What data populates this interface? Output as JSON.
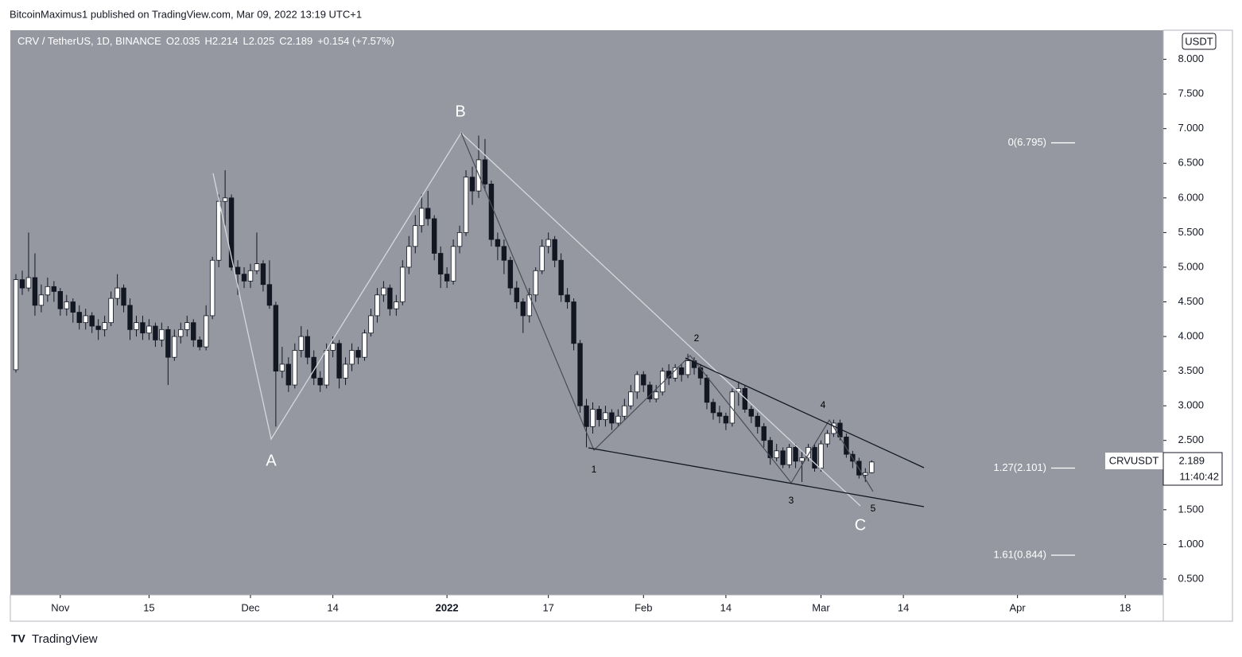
{
  "header": {
    "publisher": "BitcoinMaximus1 published on TradingView.com, Mar 09, 2022 13:19 UTC+1",
    "brand": "TradingView"
  },
  "chart_data": {
    "type": "candlestick",
    "title": "CRV / TetherUS, 1D, BINANCE",
    "ohlc_labels": [
      "O",
      "H",
      "L",
      "C"
    ],
    "change_label": "+0.154 (+7.57%)",
    "currency": "USDT",
    "symbol": "CRVUSDT",
    "countdown": "11:40:42",
    "up_color": "#ffffff",
    "down_color": "#131722",
    "background": "#9598a1",
    "ylim": [
      0.27,
      8.42
    ],
    "yticks": [
      {
        "value": 0.5,
        "label": "0.500"
      },
      {
        "value": 1,
        "label": "1.000"
      },
      {
        "value": 1.5,
        "label": "1.500"
      },
      {
        "value": 2,
        "label": "2.000"
      },
      {
        "value": 2.5,
        "label": "2.500"
      },
      {
        "value": 3,
        "label": "3.000"
      },
      {
        "value": 3.5,
        "label": "3.500"
      },
      {
        "value": 4,
        "label": "4.000"
      },
      {
        "value": 4.5,
        "label": "4.500"
      },
      {
        "value": 5,
        "label": "5.000"
      },
      {
        "value": 5.5,
        "label": "5.500"
      },
      {
        "value": 6,
        "label": "6.000"
      },
      {
        "value": 6.5,
        "label": "6.500"
      },
      {
        "value": 7,
        "label": "7.000"
      },
      {
        "value": 7.5,
        "label": "7.500"
      },
      {
        "value": 8,
        "label": "8.000"
      }
    ],
    "xlim": [
      -0.88,
      181
    ],
    "xticks": [
      {
        "value": 7,
        "label": "Nov"
      },
      {
        "value": 21,
        "label": "15"
      },
      {
        "value": 37,
        "label": "Dec"
      },
      {
        "value": 50,
        "label": "14"
      },
      {
        "value": 68,
        "label": "2022"
      },
      {
        "value": 84,
        "label": "17"
      },
      {
        "value": 99,
        "label": "Feb"
      },
      {
        "value": 112,
        "label": "14"
      },
      {
        "value": 127,
        "label": "Mar"
      },
      {
        "value": 140,
        "label": "14"
      },
      {
        "value": 158,
        "label": "Apr"
      },
      {
        "value": 175,
        "label": "18"
      }
    ],
    "wave_labels": [
      "A",
      "B",
      "C",
      "1",
      "2",
      "3",
      "4",
      "5"
    ],
    "fib_levels": [
      {
        "label": "0(6.795)",
        "value": 6.795
      },
      {
        "label": "1.27(2.101)",
        "value": 2.101
      },
      {
        "label": "1.61(0.844)",
        "value": 0.844
      }
    ],
    "ohlc": [
      [
        3.52,
        4.9,
        3.48,
        4.82
      ],
      [
        4.82,
        4.95,
        4.6,
        4.7
      ],
      [
        4.7,
        5.5,
        4.65,
        4.85
      ],
      [
        4.85,
        5.2,
        4.3,
        4.45
      ],
      [
        4.45,
        4.75,
        4.35,
        4.6
      ],
      [
        4.6,
        4.85,
        4.5,
        4.72
      ],
      [
        4.72,
        4.8,
        4.5,
        4.65
      ],
      [
        4.65,
        4.7,
        4.3,
        4.4
      ],
      [
        4.4,
        4.6,
        4.3,
        4.5
      ],
      [
        4.5,
        4.55,
        4.2,
        4.35
      ],
      [
        4.35,
        4.45,
        4.1,
        4.2
      ],
      [
        4.2,
        4.4,
        4.1,
        4.3
      ],
      [
        4.3,
        4.35,
        4.05,
        4.15
      ],
      [
        4.15,
        4.25,
        3.95,
        4.1
      ],
      [
        4.1,
        4.3,
        4.0,
        4.2
      ],
      [
        4.2,
        4.65,
        4.15,
        4.55
      ],
      [
        4.55,
        4.9,
        4.45,
        4.7
      ],
      [
        4.7,
        4.75,
        4.35,
        4.45
      ],
      [
        4.45,
        4.55,
        3.95,
        4.1
      ],
      [
        4.1,
        4.3,
        4.0,
        4.2
      ],
      [
        4.2,
        4.3,
        3.95,
        4.05
      ],
      [
        4.05,
        4.25,
        3.95,
        4.15
      ],
      [
        4.15,
        4.2,
        3.85,
        3.95
      ],
      [
        3.95,
        4.2,
        3.85,
        4.1
      ],
      [
        4.1,
        4.15,
        3.3,
        3.7
      ],
      [
        3.7,
        4.1,
        3.65,
        4.0
      ],
      [
        4.0,
        4.2,
        3.9,
        4.1
      ],
      [
        4.1,
        4.3,
        4.0,
        4.2
      ],
      [
        4.2,
        4.25,
        3.85,
        3.95
      ],
      [
        3.95,
        4.0,
        3.8,
        3.85
      ],
      [
        3.85,
        4.45,
        3.8,
        4.3
      ],
      [
        4.3,
        5.15,
        4.25,
        5.1
      ],
      [
        5.1,
        6.05,
        5.0,
        5.95
      ],
      [
        5.95,
        6.4,
        5.6,
        6.0
      ],
      [
        6.0,
        6.05,
        4.95,
        5.0
      ],
      [
        5.0,
        5.1,
        4.6,
        4.9
      ],
      [
        4.9,
        5.0,
        4.7,
        4.8
      ],
      [
        4.8,
        5.05,
        4.7,
        4.95
      ],
      [
        4.95,
        5.5,
        4.9,
        5.05
      ],
      [
        5.05,
        5.1,
        4.65,
        4.75
      ],
      [
        4.75,
        5.1,
        4.4,
        4.45
      ],
      [
        4.45,
        4.5,
        2.7,
        3.5
      ],
      [
        3.5,
        3.85,
        3.4,
        3.6
      ],
      [
        3.6,
        3.7,
        3.2,
        3.3
      ],
      [
        3.3,
        3.9,
        3.25,
        3.8
      ],
      [
        3.8,
        4.15,
        3.7,
        4.0
      ],
      [
        4.0,
        4.1,
        3.6,
        3.7
      ],
      [
        3.7,
        3.8,
        3.3,
        3.4
      ],
      [
        3.4,
        3.5,
        3.2,
        3.3
      ],
      [
        3.3,
        3.9,
        3.25,
        3.8
      ],
      [
        3.8,
        4.0,
        3.7,
        3.9
      ],
      [
        3.9,
        3.95,
        3.25,
        3.4
      ],
      [
        3.4,
        3.7,
        3.3,
        3.6
      ],
      [
        3.6,
        3.9,
        3.5,
        3.8
      ],
      [
        3.8,
        3.85,
        3.6,
        3.7
      ],
      [
        3.7,
        4.1,
        3.65,
        4.05
      ],
      [
        4.05,
        4.4,
        4.0,
        4.3
      ],
      [
        4.3,
        4.7,
        4.2,
        4.6
      ],
      [
        4.6,
        4.8,
        4.5,
        4.7
      ],
      [
        4.7,
        4.75,
        4.3,
        4.4
      ],
      [
        4.4,
        4.6,
        4.3,
        4.5
      ],
      [
        4.5,
        5.1,
        4.45,
        5.0
      ],
      [
        5.0,
        5.45,
        4.9,
        5.3
      ],
      [
        5.3,
        5.75,
        5.2,
        5.6
      ],
      [
        5.6,
        6.05,
        5.5,
        5.85
      ],
      [
        5.85,
        6.1,
        5.6,
        5.7
      ],
      [
        5.7,
        5.75,
        5.1,
        5.2
      ],
      [
        5.2,
        5.3,
        4.7,
        4.9
      ],
      [
        4.9,
        5.0,
        4.7,
        4.8
      ],
      [
        4.8,
        5.4,
        4.75,
        5.3
      ],
      [
        5.3,
        5.6,
        5.2,
        5.5
      ],
      [
        5.5,
        6.4,
        5.45,
        6.3
      ],
      [
        6.3,
        6.45,
        5.9,
        6.1
      ],
      [
        6.1,
        6.9,
        6.0,
        6.55
      ],
      [
        6.55,
        6.85,
        6.1,
        6.2
      ],
      [
        6.2,
        6.25,
        5.3,
        5.4
      ],
      [
        5.4,
        5.5,
        5.1,
        5.3
      ],
      [
        5.3,
        5.4,
        4.9,
        5.1
      ],
      [
        5.1,
        5.15,
        4.6,
        4.7
      ],
      [
        4.7,
        4.8,
        4.4,
        4.5
      ],
      [
        4.5,
        4.55,
        4.05,
        4.3
      ],
      [
        4.3,
        4.7,
        4.2,
        4.6
      ],
      [
        4.6,
        5.0,
        4.5,
        4.95
      ],
      [
        4.95,
        5.4,
        4.9,
        5.3
      ],
      [
        5.3,
        5.5,
        5.2,
        5.4
      ],
      [
        5.4,
        5.45,
        5.0,
        5.1
      ],
      [
        5.1,
        5.2,
        4.5,
        4.6
      ],
      [
        4.6,
        4.7,
        4.4,
        4.5
      ],
      [
        4.5,
        4.55,
        3.8,
        3.9
      ],
      [
        3.9,
        3.95,
        2.9,
        3.0
      ],
      [
        3.0,
        3.1,
        2.4,
        2.7
      ],
      [
        2.7,
        3.05,
        2.6,
        2.95
      ],
      [
        2.95,
        3.0,
        2.7,
        2.8
      ],
      [
        2.8,
        3.0,
        2.7,
        2.9
      ],
      [
        2.9,
        2.95,
        2.65,
        2.75
      ],
      [
        2.75,
        2.95,
        2.7,
        2.85
      ],
      [
        2.85,
        3.1,
        2.8,
        3.0
      ],
      [
        3.0,
        3.3,
        2.95,
        3.2
      ],
      [
        3.2,
        3.5,
        3.1,
        3.45
      ],
      [
        3.45,
        3.5,
        3.2,
        3.3
      ],
      [
        3.3,
        3.35,
        3.05,
        3.1
      ],
      [
        3.1,
        3.3,
        3.05,
        3.2
      ],
      [
        3.2,
        3.55,
        3.15,
        3.5
      ],
      [
        3.5,
        3.6,
        3.3,
        3.4
      ],
      [
        3.4,
        3.6,
        3.35,
        3.55
      ],
      [
        3.55,
        3.6,
        3.35,
        3.45
      ],
      [
        3.45,
        3.75,
        3.4,
        3.65
      ],
      [
        3.65,
        3.7,
        3.45,
        3.55
      ],
      [
        3.55,
        3.6,
        3.3,
        3.4
      ],
      [
        3.4,
        3.45,
        2.95,
        3.05
      ],
      [
        3.05,
        3.1,
        2.8,
        2.9
      ],
      [
        2.9,
        3.0,
        2.75,
        2.85
      ],
      [
        2.85,
        2.9,
        2.65,
        2.75
      ],
      [
        2.75,
        3.25,
        2.7,
        3.2
      ],
      [
        3.2,
        3.35,
        3.0,
        3.25
      ],
      [
        3.25,
        3.3,
        2.9,
        2.95
      ],
      [
        2.95,
        3.0,
        2.75,
        2.85
      ],
      [
        2.85,
        2.9,
        2.6,
        2.7
      ],
      [
        2.7,
        2.75,
        2.4,
        2.5
      ],
      [
        2.5,
        2.55,
        2.15,
        2.25
      ],
      [
        2.25,
        2.45,
        2.2,
        2.35
      ],
      [
        2.35,
        2.4,
        2.1,
        2.15
      ],
      [
        2.15,
        2.45,
        2.1,
        2.4
      ],
      [
        2.4,
        2.45,
        2.1,
        2.2
      ],
      [
        2.2,
        2.35,
        1.9,
        2.25
      ],
      [
        2.25,
        2.45,
        2.2,
        2.4
      ],
      [
        2.4,
        2.45,
        2.05,
        2.1
      ],
      [
        2.1,
        2.5,
        2.05,
        2.45
      ],
      [
        2.45,
        2.65,
        2.4,
        2.6
      ],
      [
        2.6,
        2.8,
        2.55,
        2.75
      ],
      [
        2.75,
        2.8,
        2.5,
        2.55
      ],
      [
        2.55,
        2.6,
        2.25,
        2.3
      ],
      [
        2.3,
        2.35,
        2.1,
        2.2
      ],
      [
        2.2,
        2.25,
        1.95,
        2.0
      ],
      [
        2.0,
        2.1,
        1.9,
        2.035
      ],
      [
        2.035,
        2.214,
        2.025,
        2.189
      ]
    ]
  }
}
